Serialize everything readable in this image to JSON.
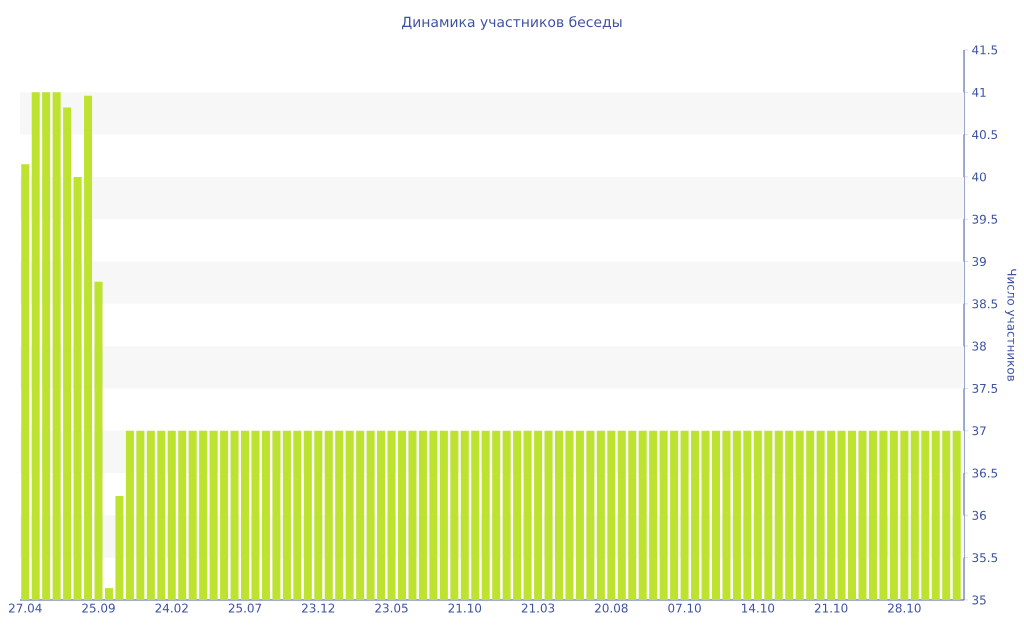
{
  "chart_data": {
    "type": "bar",
    "title": "Динамика участников беседы",
    "ylabel": "Число участников",
    "categories": [
      "27.04",
      null,
      null,
      null,
      null,
      null,
      null,
      "25.09",
      null,
      null,
      null,
      null,
      null,
      null,
      "24.02",
      null,
      null,
      null,
      null,
      null,
      null,
      "25.07",
      null,
      null,
      null,
      null,
      null,
      null,
      "23.12",
      null,
      null,
      null,
      null,
      null,
      null,
      "23.05",
      null,
      null,
      null,
      null,
      null,
      null,
      "21.10",
      null,
      null,
      null,
      null,
      null,
      null,
      "21.03",
      null,
      null,
      null,
      null,
      null,
      null,
      "20.08",
      null,
      null,
      null,
      null,
      null,
      null,
      "07.10",
      null,
      null,
      null,
      null,
      null,
      null,
      "14.10",
      null,
      null,
      null,
      null,
      null,
      null,
      "21.10",
      null,
      null,
      null,
      null,
      null,
      null,
      "28.10",
      null,
      null,
      null,
      null,
      null
    ],
    "values": [
      40.15,
      41,
      41,
      41,
      40.82,
      40,
      40.96,
      38.76,
      35.14,
      36.23,
      37,
      37,
      37,
      37,
      37,
      37,
      37,
      37,
      37,
      37,
      37,
      37,
      37,
      37,
      37,
      37,
      37,
      37,
      37,
      37,
      37,
      37,
      37,
      37,
      37,
      37,
      37,
      37,
      37,
      37,
      37,
      37,
      37,
      37,
      37,
      37,
      37,
      37,
      37,
      37,
      37,
      37,
      37,
      37,
      37,
      37,
      37,
      37,
      37,
      37,
      37,
      37,
      37,
      37,
      37,
      37,
      37,
      37,
      37,
      37,
      37,
      37,
      37,
      37,
      37,
      37,
      37,
      37,
      37,
      37,
      37,
      37,
      37,
      37,
      37,
      37,
      37,
      37,
      37,
      37
    ],
    "color": "#bde22f",
    "ylim": [
      35,
      41.5
    ],
    "yticks": [
      35,
      35.5,
      36,
      36.5,
      37,
      37.5,
      38,
      38.5,
      39,
      39.5,
      40,
      40.5,
      41,
      41.5
    ],
    "bands": [
      {
        "axis": "y",
        "from": 35.5,
        "to": 36,
        "color": "#f7f7f7"
      },
      {
        "axis": "y",
        "from": 36.5,
        "to": 37,
        "color": "#f7f7f7"
      },
      {
        "axis": "y",
        "from": 37.5,
        "to": 38,
        "color": "#f7f7f7"
      },
      {
        "axis": "y",
        "from": 38.5,
        "to": 39,
        "color": "#f7f7f7"
      },
      {
        "axis": "y",
        "from": 39.5,
        "to": 40,
        "color": "#f7f7f7"
      },
      {
        "axis": "y",
        "from": 40.5,
        "to": 41,
        "color": "#f7f7f7"
      }
    ]
  }
}
